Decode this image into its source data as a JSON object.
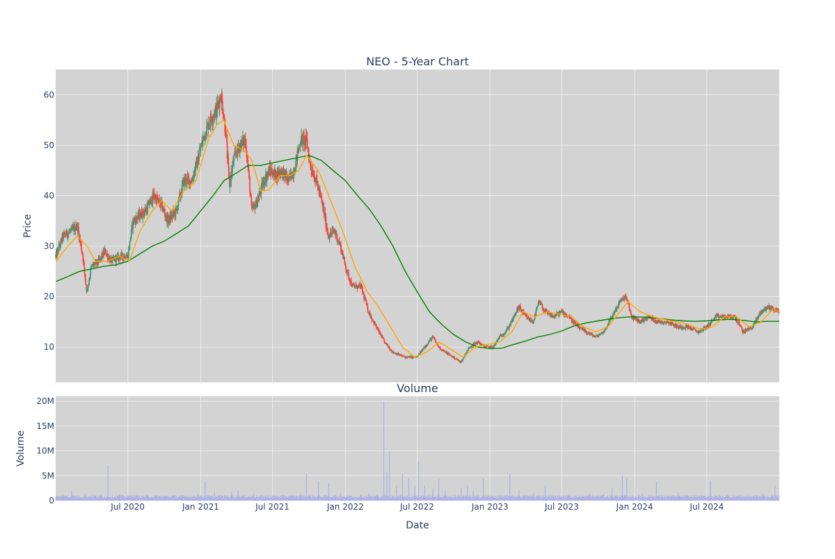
{
  "chart_data": [
    {
      "type": "candlestick",
      "title": "NEO - 5-Year Chart",
      "ylabel": "Price",
      "xlim": [
        "2020-01-01",
        "2024-12-31"
      ],
      "ylim": [
        3,
        65
      ],
      "y_ticks": [
        10,
        20,
        30,
        40,
        50,
        60
      ],
      "up_color": "#3d9970",
      "down_color": "#ff4136",
      "background": "#d3d3d3",
      "grid": true,
      "close_path": [
        [
          "2020-01-02",
          28
        ],
        [
          "2020-01-20",
          32
        ],
        [
          "2020-02-10",
          33
        ],
        [
          "2020-02-25",
          34
        ],
        [
          "2020-03-10",
          28
        ],
        [
          "2020-03-20",
          21
        ],
        [
          "2020-04-01",
          26
        ],
        [
          "2020-04-20",
          27
        ],
        [
          "2020-05-05",
          29
        ],
        [
          "2020-05-20",
          27
        ],
        [
          "2020-06-15",
          28
        ],
        [
          "2020-07-01",
          28
        ],
        [
          "2020-07-15",
          35
        ],
        [
          "2020-08-15",
          37
        ],
        [
          "2020-09-05",
          40
        ],
        [
          "2020-09-25",
          38
        ],
        [
          "2020-10-10",
          35
        ],
        [
          "2020-11-01",
          37
        ],
        [
          "2020-11-20",
          43
        ],
        [
          "2020-12-10",
          43
        ],
        [
          "2020-12-25",
          47
        ],
        [
          "2021-01-10",
          52
        ],
        [
          "2021-01-25",
          55
        ],
        [
          "2021-02-10",
          57
        ],
        [
          "2021-02-22",
          60
        ],
        [
          "2021-03-05",
          53
        ],
        [
          "2021-03-15",
          42
        ],
        [
          "2021-03-25",
          47
        ],
        [
          "2021-04-10",
          50
        ],
        [
          "2021-04-25",
          51
        ],
        [
          "2021-05-10",
          37
        ],
        [
          "2021-05-25",
          39
        ],
        [
          "2021-06-10",
          43
        ],
        [
          "2021-06-25",
          45
        ],
        [
          "2021-07-10",
          44
        ],
        [
          "2021-07-25",
          45
        ],
        [
          "2021-08-10",
          43
        ],
        [
          "2021-08-25",
          45
        ],
        [
          "2021-09-10",
          51
        ],
        [
          "2021-09-25",
          51
        ],
        [
          "2021-10-05",
          46
        ],
        [
          "2021-10-20",
          43
        ],
        [
          "2021-11-05",
          38
        ],
        [
          "2021-11-20",
          32
        ],
        [
          "2021-12-05",
          33
        ],
        [
          "2021-12-20",
          30
        ],
        [
          "2022-01-05",
          25
        ],
        [
          "2022-01-20",
          22
        ],
        [
          "2022-02-10",
          22
        ],
        [
          "2022-03-01",
          17
        ],
        [
          "2022-03-20",
          14
        ],
        [
          "2022-04-10",
          11
        ],
        [
          "2022-05-01",
          9
        ],
        [
          "2022-06-01",
          8
        ],
        [
          "2022-07-01",
          8
        ],
        [
          "2022-07-20",
          10
        ],
        [
          "2022-08-10",
          12
        ],
        [
          "2022-08-25",
          10
        ],
        [
          "2022-09-10",
          9
        ],
        [
          "2022-10-01",
          8
        ],
        [
          "2022-10-20",
          7
        ],
        [
          "2022-11-10",
          10
        ],
        [
          "2022-12-01",
          11
        ],
        [
          "2022-12-20",
          10
        ],
        [
          "2023-01-10",
          10
        ],
        [
          "2023-01-25",
          12
        ],
        [
          "2023-02-10",
          13
        ],
        [
          "2023-02-25",
          15
        ],
        [
          "2023-03-15",
          18
        ],
        [
          "2023-04-01",
          16
        ],
        [
          "2023-04-20",
          15
        ],
        [
          "2023-05-05",
          19
        ],
        [
          "2023-05-20",
          17
        ],
        [
          "2023-06-10",
          16
        ],
        [
          "2023-07-01",
          17
        ],
        [
          "2023-07-20",
          16
        ],
        [
          "2023-08-10",
          14
        ],
        [
          "2023-09-01",
          13
        ],
        [
          "2023-09-25",
          12
        ],
        [
          "2023-10-15",
          13
        ],
        [
          "2023-11-05",
          16
        ],
        [
          "2023-11-25",
          19
        ],
        [
          "2023-12-10",
          20
        ],
        [
          "2023-12-25",
          16
        ],
        [
          "2024-01-15",
          15
        ],
        [
          "2024-02-05",
          16
        ],
        [
          "2024-03-01",
          15
        ],
        [
          "2024-03-25",
          15
        ],
        [
          "2024-04-20",
          14
        ],
        [
          "2024-05-15",
          14
        ],
        [
          "2024-06-10",
          13
        ],
        [
          "2024-07-01",
          14
        ],
        [
          "2024-07-25",
          16
        ],
        [
          "2024-08-20",
          16
        ],
        [
          "2024-09-10",
          16
        ],
        [
          "2024-10-01",
          13
        ],
        [
          "2024-10-25",
          14
        ],
        [
          "2024-11-15",
          17
        ],
        [
          "2024-12-05",
          18
        ],
        [
          "2024-12-31",
          17
        ]
      ],
      "moving_average_20": [
        [
          "2020-01-02",
          27
        ],
        [
          "2020-02-01",
          30
        ],
        [
          "2020-02-25",
          32
        ],
        [
          "2020-03-20",
          30
        ],
        [
          "2020-04-10",
          27
        ],
        [
          "2020-05-10",
          27
        ],
        [
          "2020-06-10",
          28
        ],
        [
          "2020-07-05",
          27
        ],
        [
          "2020-08-01",
          33
        ],
        [
          "2020-09-01",
          37
        ],
        [
          "2020-09-25",
          39
        ],
        [
          "2020-10-20",
          37
        ],
        [
          "2020-11-20",
          41
        ],
        [
          "2020-12-20",
          43
        ],
        [
          "2021-01-20",
          51
        ],
        [
          "2021-02-10",
          54
        ],
        [
          "2021-02-28",
          55
        ],
        [
          "2021-03-25",
          50
        ],
        [
          "2021-04-20",
          49
        ],
        [
          "2021-05-10",
          47
        ],
        [
          "2021-06-01",
          41
        ],
        [
          "2021-06-20",
          41
        ],
        [
          "2021-07-20",
          44
        ],
        [
          "2021-08-15",
          44
        ],
        [
          "2021-09-05",
          45
        ],
        [
          "2021-09-25",
          48
        ],
        [
          "2021-10-25",
          45
        ],
        [
          "2021-11-25",
          39
        ],
        [
          "2021-12-25",
          33
        ],
        [
          "2022-01-25",
          26
        ],
        [
          "2022-02-25",
          21
        ],
        [
          "2022-03-25",
          18
        ],
        [
          "2022-04-25",
          14
        ],
        [
          "2022-05-25",
          10
        ],
        [
          "2022-06-25",
          8
        ],
        [
          "2022-07-25",
          9
        ],
        [
          "2022-08-25",
          11
        ],
        [
          "2022-09-25",
          9.5
        ],
        [
          "2022-10-25",
          8
        ],
        [
          "2022-11-25",
          10
        ],
        [
          "2022-12-25",
          10.5
        ],
        [
          "2023-01-25",
          11
        ],
        [
          "2023-02-25",
          13
        ],
        [
          "2023-03-25",
          17
        ],
        [
          "2023-04-25",
          16
        ],
        [
          "2023-05-25",
          17
        ],
        [
          "2023-06-25",
          16.5
        ],
        [
          "2023-07-25",
          16
        ],
        [
          "2023-08-25",
          14
        ],
        [
          "2023-09-25",
          13
        ],
        [
          "2023-10-25",
          14
        ],
        [
          "2023-11-25",
          17
        ],
        [
          "2023-12-15",
          19
        ],
        [
          "2024-01-15",
          17
        ],
        [
          "2024-02-15",
          16
        ],
        [
          "2024-03-15",
          15.5
        ],
        [
          "2024-04-15",
          15
        ],
        [
          "2024-05-15",
          14.5
        ],
        [
          "2024-06-15",
          13.5
        ],
        [
          "2024-07-15",
          14
        ],
        [
          "2024-08-15",
          16
        ],
        [
          "2024-09-15",
          16
        ],
        [
          "2024-10-15",
          14
        ],
        [
          "2024-11-15",
          15
        ],
        [
          "2024-12-15",
          17.5
        ],
        [
          "2024-12-31",
          17
        ]
      ],
      "moving_average_200": [
        [
          "2020-01-02",
          23
        ],
        [
          "2020-02-01",
          24
        ],
        [
          "2020-03-01",
          25
        ],
        [
          "2020-04-01",
          25.5
        ],
        [
          "2020-05-01",
          26
        ],
        [
          "2020-06-01",
          26.3
        ],
        [
          "2020-07-01",
          27
        ],
        [
          "2020-08-01",
          28.5
        ],
        [
          "2020-09-01",
          30
        ],
        [
          "2020-10-01",
          31
        ],
        [
          "2020-11-01",
          32.5
        ],
        [
          "2020-12-01",
          34
        ],
        [
          "2021-01-01",
          37
        ],
        [
          "2021-02-01",
          40
        ],
        [
          "2021-03-01",
          43
        ],
        [
          "2021-04-01",
          44.5
        ],
        [
          "2021-05-01",
          46
        ],
        [
          "2021-06-01",
          46
        ],
        [
          "2021-07-01",
          46.5
        ],
        [
          "2021-08-01",
          47
        ],
        [
          "2021-09-01",
          47.5
        ],
        [
          "2021-10-01",
          48
        ],
        [
          "2021-11-01",
          47
        ],
        [
          "2021-12-01",
          45
        ],
        [
          "2022-01-01",
          43
        ],
        [
          "2022-02-01",
          40
        ],
        [
          "2022-03-01",
          37.5
        ],
        [
          "2022-04-01",
          34
        ],
        [
          "2022-05-01",
          30
        ],
        [
          "2022-06-01",
          25
        ],
        [
          "2022-07-01",
          21
        ],
        [
          "2022-08-01",
          17
        ],
        [
          "2022-09-01",
          14.5
        ],
        [
          "2022-10-01",
          12.5
        ],
        [
          "2022-11-01",
          11
        ],
        [
          "2022-12-01",
          10
        ],
        [
          "2023-01-01",
          9.7
        ],
        [
          "2023-02-01",
          9.8
        ],
        [
          "2023-03-01",
          10.5
        ],
        [
          "2023-04-01",
          11.2
        ],
        [
          "2023-05-01",
          12
        ],
        [
          "2023-06-01",
          12.5
        ],
        [
          "2023-07-01",
          13.2
        ],
        [
          "2023-08-01",
          14.2
        ],
        [
          "2023-09-01",
          14.8
        ],
        [
          "2023-10-01",
          15.2
        ],
        [
          "2023-11-01",
          15.6
        ],
        [
          "2023-12-01",
          15.9
        ],
        [
          "2024-01-01",
          16
        ],
        [
          "2024-02-01",
          15.9
        ],
        [
          "2024-03-01",
          15.7
        ],
        [
          "2024-04-01",
          15.4
        ],
        [
          "2024-05-01",
          15.2
        ],
        [
          "2024-06-01",
          15.1
        ],
        [
          "2024-07-01",
          15.2
        ],
        [
          "2024-08-01",
          15.4
        ],
        [
          "2024-09-01",
          15.5
        ],
        [
          "2024-10-01",
          15.3
        ],
        [
          "2024-11-01",
          15
        ],
        [
          "2024-12-01",
          15.1
        ],
        [
          "2024-12-31",
          15.1
        ]
      ],
      "ma_short_color": "#ffa500",
      "ma_long_color": "#008000"
    },
    {
      "type": "bar",
      "title": "Volume",
      "xlabel": "Date",
      "ylabel": "Volume",
      "ylim": [
        0,
        21000000
      ],
      "y_ticks": [
        0,
        5000000,
        10000000,
        15000000,
        20000000
      ],
      "y_tick_labels": [
        "0",
        "5M",
        "10M",
        "15M",
        "20M"
      ],
      "x_ticks": [
        "2020-07-01",
        "2021-01-01",
        "2021-07-01",
        "2022-01-01",
        "2022-07-01",
        "2023-01-01",
        "2023-07-01",
        "2024-01-01",
        "2024-07-01"
      ],
      "x_tick_labels": [
        "Jul 2020",
        "Jan 2021",
        "Jul 2021",
        "Jan 2022",
        "Jul 2022",
        "Jan 2023",
        "Jul 2023",
        "Jan 2024",
        "Jul 2024"
      ],
      "bar_color": "#aab0e6",
      "background": "#d3d3d3",
      "base_volume": 800000,
      "spikes": [
        [
          "2020-01-20",
          1200000
        ],
        [
          "2020-02-10",
          2000000
        ],
        [
          "2020-03-15",
          1500000
        ],
        [
          "2020-04-25",
          1200000
        ],
        [
          "2020-05-12",
          7000000
        ],
        [
          "2020-06-10",
          1300000
        ],
        [
          "2020-07-10",
          1200000
        ],
        [
          "2020-12-25",
          1300000
        ],
        [
          "2021-01-12",
          3800000
        ],
        [
          "2021-02-05",
          1500000
        ],
        [
          "2021-03-20",
          1800000
        ],
        [
          "2021-04-05",
          2000000
        ],
        [
          "2021-05-15",
          1500000
        ],
        [
          "2021-08-15",
          1000000
        ],
        [
          "2021-09-10",
          1500000
        ],
        [
          "2021-09-25",
          5500000
        ],
        [
          "2021-10-25",
          3800000
        ],
        [
          "2021-11-20",
          3500000
        ],
        [
          "2021-12-20",
          1500000
        ],
        [
          "2022-02-10",
          1200000
        ],
        [
          "2022-03-01",
          1500000
        ],
        [
          "2022-03-22",
          1300000
        ],
        [
          "2022-04-08",
          20000000
        ],
        [
          "2022-04-15",
          5800000
        ],
        [
          "2022-04-22",
          10000000
        ],
        [
          "2022-05-10",
          3000000
        ],
        [
          "2022-05-25",
          5500000
        ],
        [
          "2022-06-10",
          4500000
        ],
        [
          "2022-06-25",
          3000000
        ],
        [
          "2022-07-05",
          8000000
        ],
        [
          "2022-07-20",
          3000000
        ],
        [
          "2022-08-10",
          2500000
        ],
        [
          "2022-08-25",
          4500000
        ],
        [
          "2022-09-10",
          2000000
        ],
        [
          "2022-10-20",
          2500000
        ],
        [
          "2022-11-05",
          3000000
        ],
        [
          "2022-11-20",
          2000000
        ],
        [
          "2022-12-15",
          4500000
        ],
        [
          "2023-02-20",
          5500000
        ],
        [
          "2023-03-15",
          2000000
        ],
        [
          "2023-04-20",
          1500000
        ],
        [
          "2023-05-20",
          3000000
        ],
        [
          "2023-07-20",
          1200000
        ],
        [
          "2023-09-10",
          1300000
        ],
        [
          "2023-10-15",
          1500000
        ],
        [
          "2023-11-05",
          2500000
        ],
        [
          "2023-12-01",
          5000000
        ],
        [
          "2023-12-12",
          4500000
        ],
        [
          "2024-01-20",
          1500000
        ],
        [
          "2024-02-25",
          3800000
        ],
        [
          "2024-04-20",
          1600000
        ],
        [
          "2024-07-10",
          4000000
        ],
        [
          "2024-08-20",
          1200000
        ],
        [
          "2024-09-25",
          1200000
        ],
        [
          "2024-11-20",
          1500000
        ],
        [
          "2024-12-20",
          3000000
        ]
      ]
    }
  ]
}
